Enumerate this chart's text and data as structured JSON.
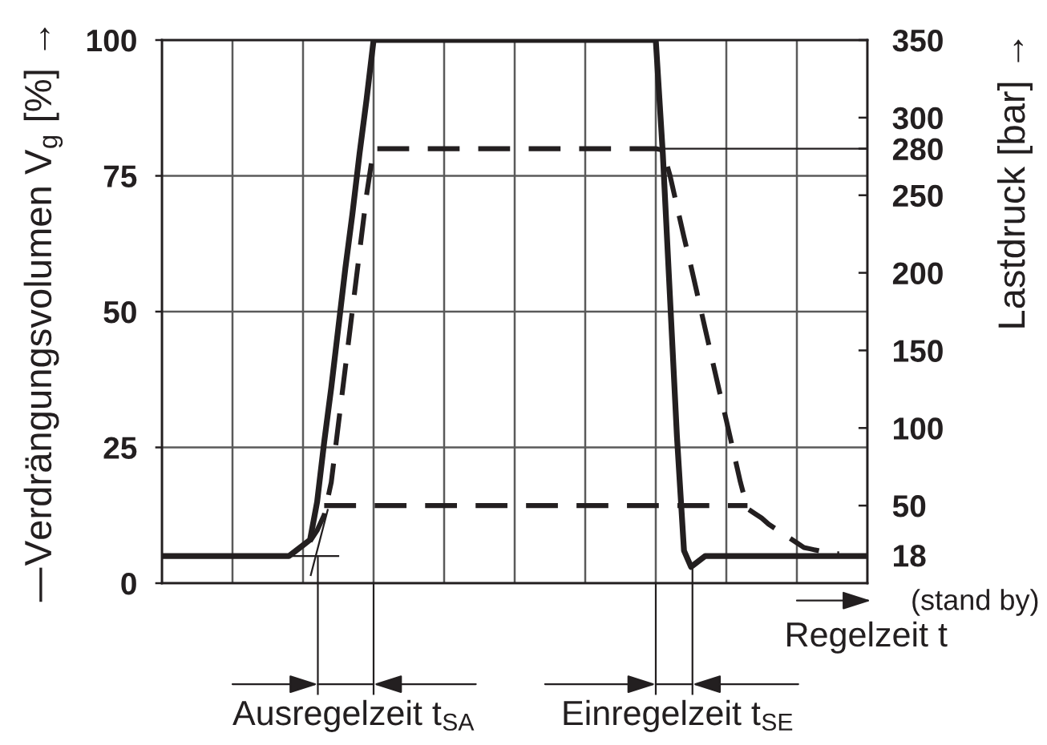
{
  "chart_data": {
    "type": "line",
    "ylabel": "—Verdrängungsvolumen V$_{g}$ [%] →",
    "y2label": "Lastdruck [bar] →",
    "xlabel": "Regelzeit t",
    "annotations": [
      "Ausregelzeit t$_{SA}$",
      "Einregelzeit t$_{SE}$",
      "(stand by)"
    ],
    "categories": [
      null,
      null,
      null,
      null,
      null,
      null,
      null,
      null,
      null,
      null,
      null,
      null,
      null,
      null,
      null,
      null,
      null,
      null,
      null,
      null,
      null,
      null,
      null,
      null,
      null,
      null,
      null,
      null,
      null,
      null,
      null,
      null,
      null,
      null,
      null,
      null,
      null,
      null,
      null,
      null,
      null,
      null,
      null,
      null,
      null,
      null,
      null,
      null,
      null,
      null,
      null,
      null,
      null,
      null,
      null,
      null,
      null,
      null,
      null,
      null,
      null,
      null,
      null,
      null,
      null,
      null,
      null,
      null,
      null,
      null,
      null,
      null,
      null,
      null,
      null,
      null,
      null,
      null,
      null,
      null,
      null,
      null,
      null,
      null,
      null,
      null,
      null,
      null,
      null,
      null,
      null,
      null,
      null,
      null,
      null,
      null,
      null,
      null,
      null,
      null,
      null
    ],
    "ylim": [
      0,
      100
    ],
    "yticks": [
      0,
      25,
      50,
      75,
      100
    ],
    "y2lim": [
      0,
      350
    ],
    "y2ticks": [
      18,
      50,
      100,
      150,
      200,
      250,
      280,
      300,
      350
    ],
    "grid": true,
    "marker": "none",
    "ref_lines": [
      {
        "axis": "y2",
        "value": 280,
        "color": "#231f20"
      }
    ],
    "series": [
      {
        "color": "#231f20",
        "line_style": "solid",
        "values": [
          5,
          5,
          5,
          5,
          5,
          5,
          5,
          5,
          5,
          5,
          5,
          5,
          5,
          5,
          5,
          5,
          5,
          5,
          5,
          6,
          7,
          8,
          15,
          26,
          36,
          47,
          58,
          68,
          79,
          89,
          100,
          100,
          100,
          100,
          100,
          100,
          100,
          100,
          100,
          100,
          100,
          100,
          100,
          100,
          100,
          100,
          100,
          100,
          100,
          100,
          100,
          100,
          100,
          100,
          100,
          100,
          100,
          100,
          100,
          100,
          100,
          100,
          100,
          100,
          100,
          100,
          100,
          100,
          100,
          100,
          100,
          79,
          53,
          27,
          6,
          3,
          4,
          5,
          5,
          5,
          5,
          5,
          5,
          5,
          5,
          5,
          5,
          5,
          5,
          5,
          5,
          5,
          5,
          5,
          5,
          5,
          5,
          5,
          5,
          5,
          5
        ]
      },
      {
        "color": "#231f20",
        "line_style": "dashed",
        "axis": "y2",
        "values": [
          null,
          null,
          null,
          null,
          null,
          null,
          null,
          null,
          null,
          null,
          null,
          null,
          null,
          null,
          null,
          null,
          null,
          null,
          null,
          null,
          null,
          27,
          34,
          44,
          65,
          102,
          139,
          176,
          213,
          250,
          280,
          280,
          280,
          280,
          280,
          280,
          280,
          280,
          280,
          280,
          280,
          280,
          280,
          280,
          280,
          280,
          280,
          280,
          280,
          280,
          280,
          280,
          280,
          280,
          280,
          280,
          280,
          280,
          280,
          280,
          280,
          280,
          280,
          280,
          280,
          280,
          280,
          280,
          280,
          280,
          280,
          279,
          263,
          243,
          223,
          204,
          184,
          164,
          144,
          124,
          105,
          85,
          65,
          48,
          45,
          42,
          38,
          35,
          32,
          29,
          26,
          23,
          22,
          21,
          20,
          19,
          19,
          null,
          null,
          null,
          null
        ]
      },
      {
        "color": "#231f20",
        "line_style": "dashed",
        "axis": "y2",
        "values": [
          null,
          null,
          null,
          null,
          null,
          null,
          null,
          null,
          null,
          null,
          null,
          null,
          null,
          null,
          null,
          null,
          null,
          null,
          null,
          null,
          null,
          null,
          null,
          50,
          50,
          50,
          50,
          50,
          50,
          50,
          50,
          50,
          50,
          50,
          50,
          50,
          50,
          50,
          50,
          50,
          50,
          50,
          50,
          50,
          50,
          50,
          50,
          50,
          50,
          50,
          50,
          50,
          50,
          50,
          50,
          50,
          50,
          50,
          50,
          50,
          50,
          50,
          50,
          50,
          50,
          50,
          50,
          50,
          50,
          50,
          50,
          50,
          50,
          50,
          50,
          50,
          50,
          50,
          50,
          50,
          50,
          50,
          50,
          50,
          null,
          null,
          null,
          null,
          null,
          null,
          null,
          null,
          null,
          null,
          null,
          null,
          null,
          null,
          null,
          null,
          null
        ]
      }
    ]
  }
}
